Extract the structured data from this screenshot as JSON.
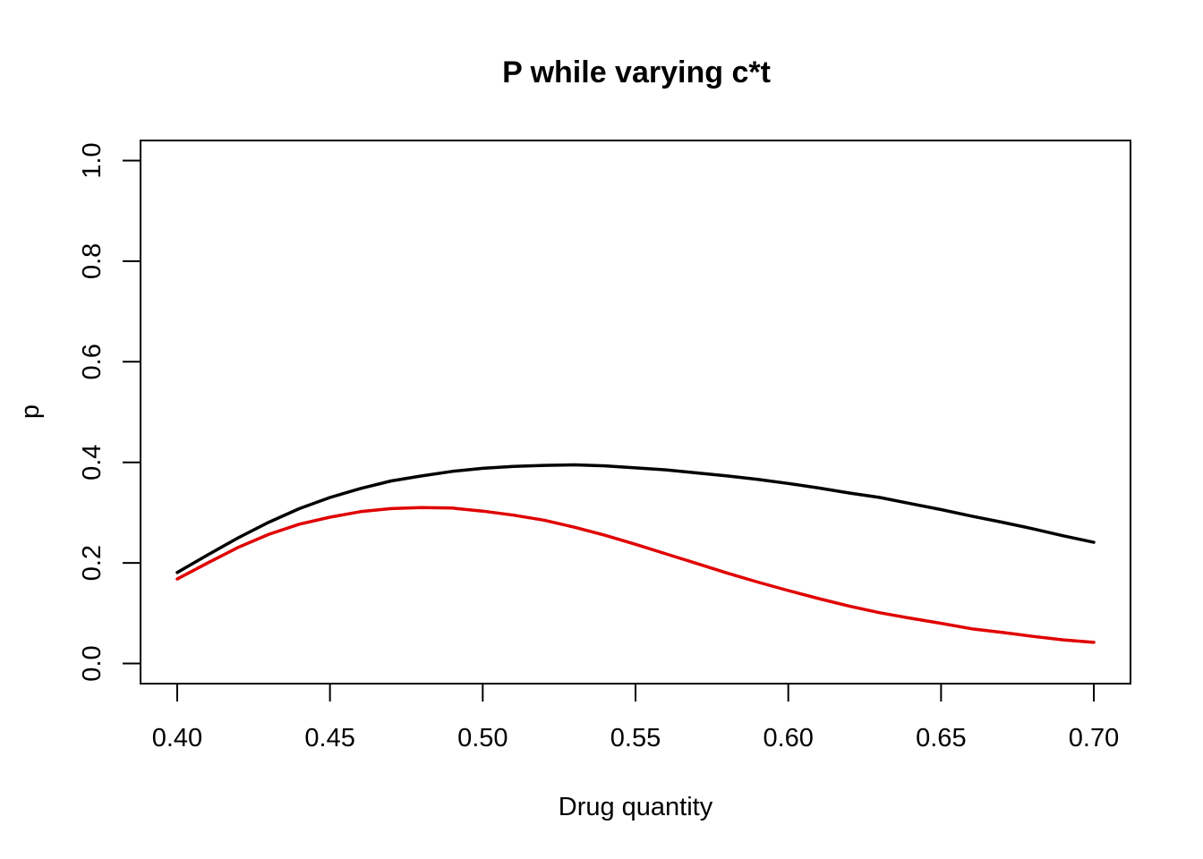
{
  "chart_data": {
    "type": "line",
    "title": "P while varying c*t",
    "xlabel": "Drug quantity",
    "ylabel": "p",
    "xlim": [
      0.388,
      0.712
    ],
    "ylim": [
      -0.04,
      1.04
    ],
    "xticks": [
      "0.40",
      "0.45",
      "0.50",
      "0.55",
      "0.60",
      "0.65",
      "0.70"
    ],
    "yticks": [
      "0.0",
      "0.2",
      "0.4",
      "0.6",
      "0.8",
      "1.0"
    ],
    "grid": false,
    "legend": "none",
    "x": [
      0.4,
      0.41,
      0.42,
      0.43,
      0.44,
      0.45,
      0.46,
      0.47,
      0.48,
      0.49,
      0.5,
      0.51,
      0.52,
      0.53,
      0.54,
      0.55,
      0.56,
      0.57,
      0.58,
      0.59,
      0.6,
      0.61,
      0.62,
      0.63,
      0.64,
      0.65,
      0.66,
      0.67,
      0.68,
      0.69,
      0.7
    ],
    "series": [
      {
        "color": "#000000",
        "values": [
          0.181,
          0.216,
          0.25,
          0.281,
          0.308,
          0.33,
          0.348,
          0.363,
          0.373,
          0.382,
          0.388,
          0.392,
          0.394,
          0.395,
          0.393,
          0.389,
          0.385,
          0.379,
          0.373,
          0.366,
          0.358,
          0.349,
          0.339,
          0.33,
          0.318,
          0.306,
          0.293,
          0.281,
          0.268,
          0.254,
          0.241
        ]
      },
      {
        "color": "#e00000",
        "values": [
          0.168,
          0.2,
          0.231,
          0.257,
          0.277,
          0.291,
          0.302,
          0.308,
          0.31,
          0.309,
          0.303,
          0.295,
          0.285,
          0.271,
          0.255,
          0.237,
          0.218,
          0.199,
          0.18,
          0.162,
          0.145,
          0.129,
          0.114,
          0.101,
          0.09,
          0.08,
          0.069,
          0.062,
          0.054,
          0.047,
          0.042
        ]
      }
    ]
  }
}
